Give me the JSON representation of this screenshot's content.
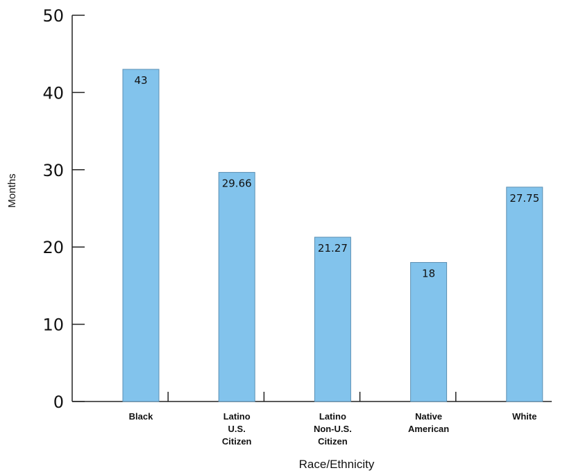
{
  "chart_data": {
    "type": "bar",
    "title": "",
    "xlabel": "Race/Ethnicity",
    "ylabel": "Months",
    "ylim": [
      0,
      50
    ],
    "yticks": [
      0,
      10,
      20,
      30,
      40,
      50
    ],
    "grid": false,
    "legend": "none",
    "categories": [
      [
        "Black"
      ],
      [
        "Latino",
        "U.S.",
        "Citizen"
      ],
      [
        "Latino",
        "Non-U.S.",
        "Citizen"
      ],
      [
        "Native",
        "American"
      ],
      [
        "White"
      ]
    ],
    "values": [
      43,
      29.66,
      21.27,
      18,
      27.75
    ],
    "data_labels": [
      "43",
      "29.66",
      "21.27",
      "18",
      "27.75"
    ],
    "colors": {
      "bar_fill": "#82C3EC",
      "bar_stroke": "#5b8fb3",
      "axis": "#222222"
    }
  }
}
